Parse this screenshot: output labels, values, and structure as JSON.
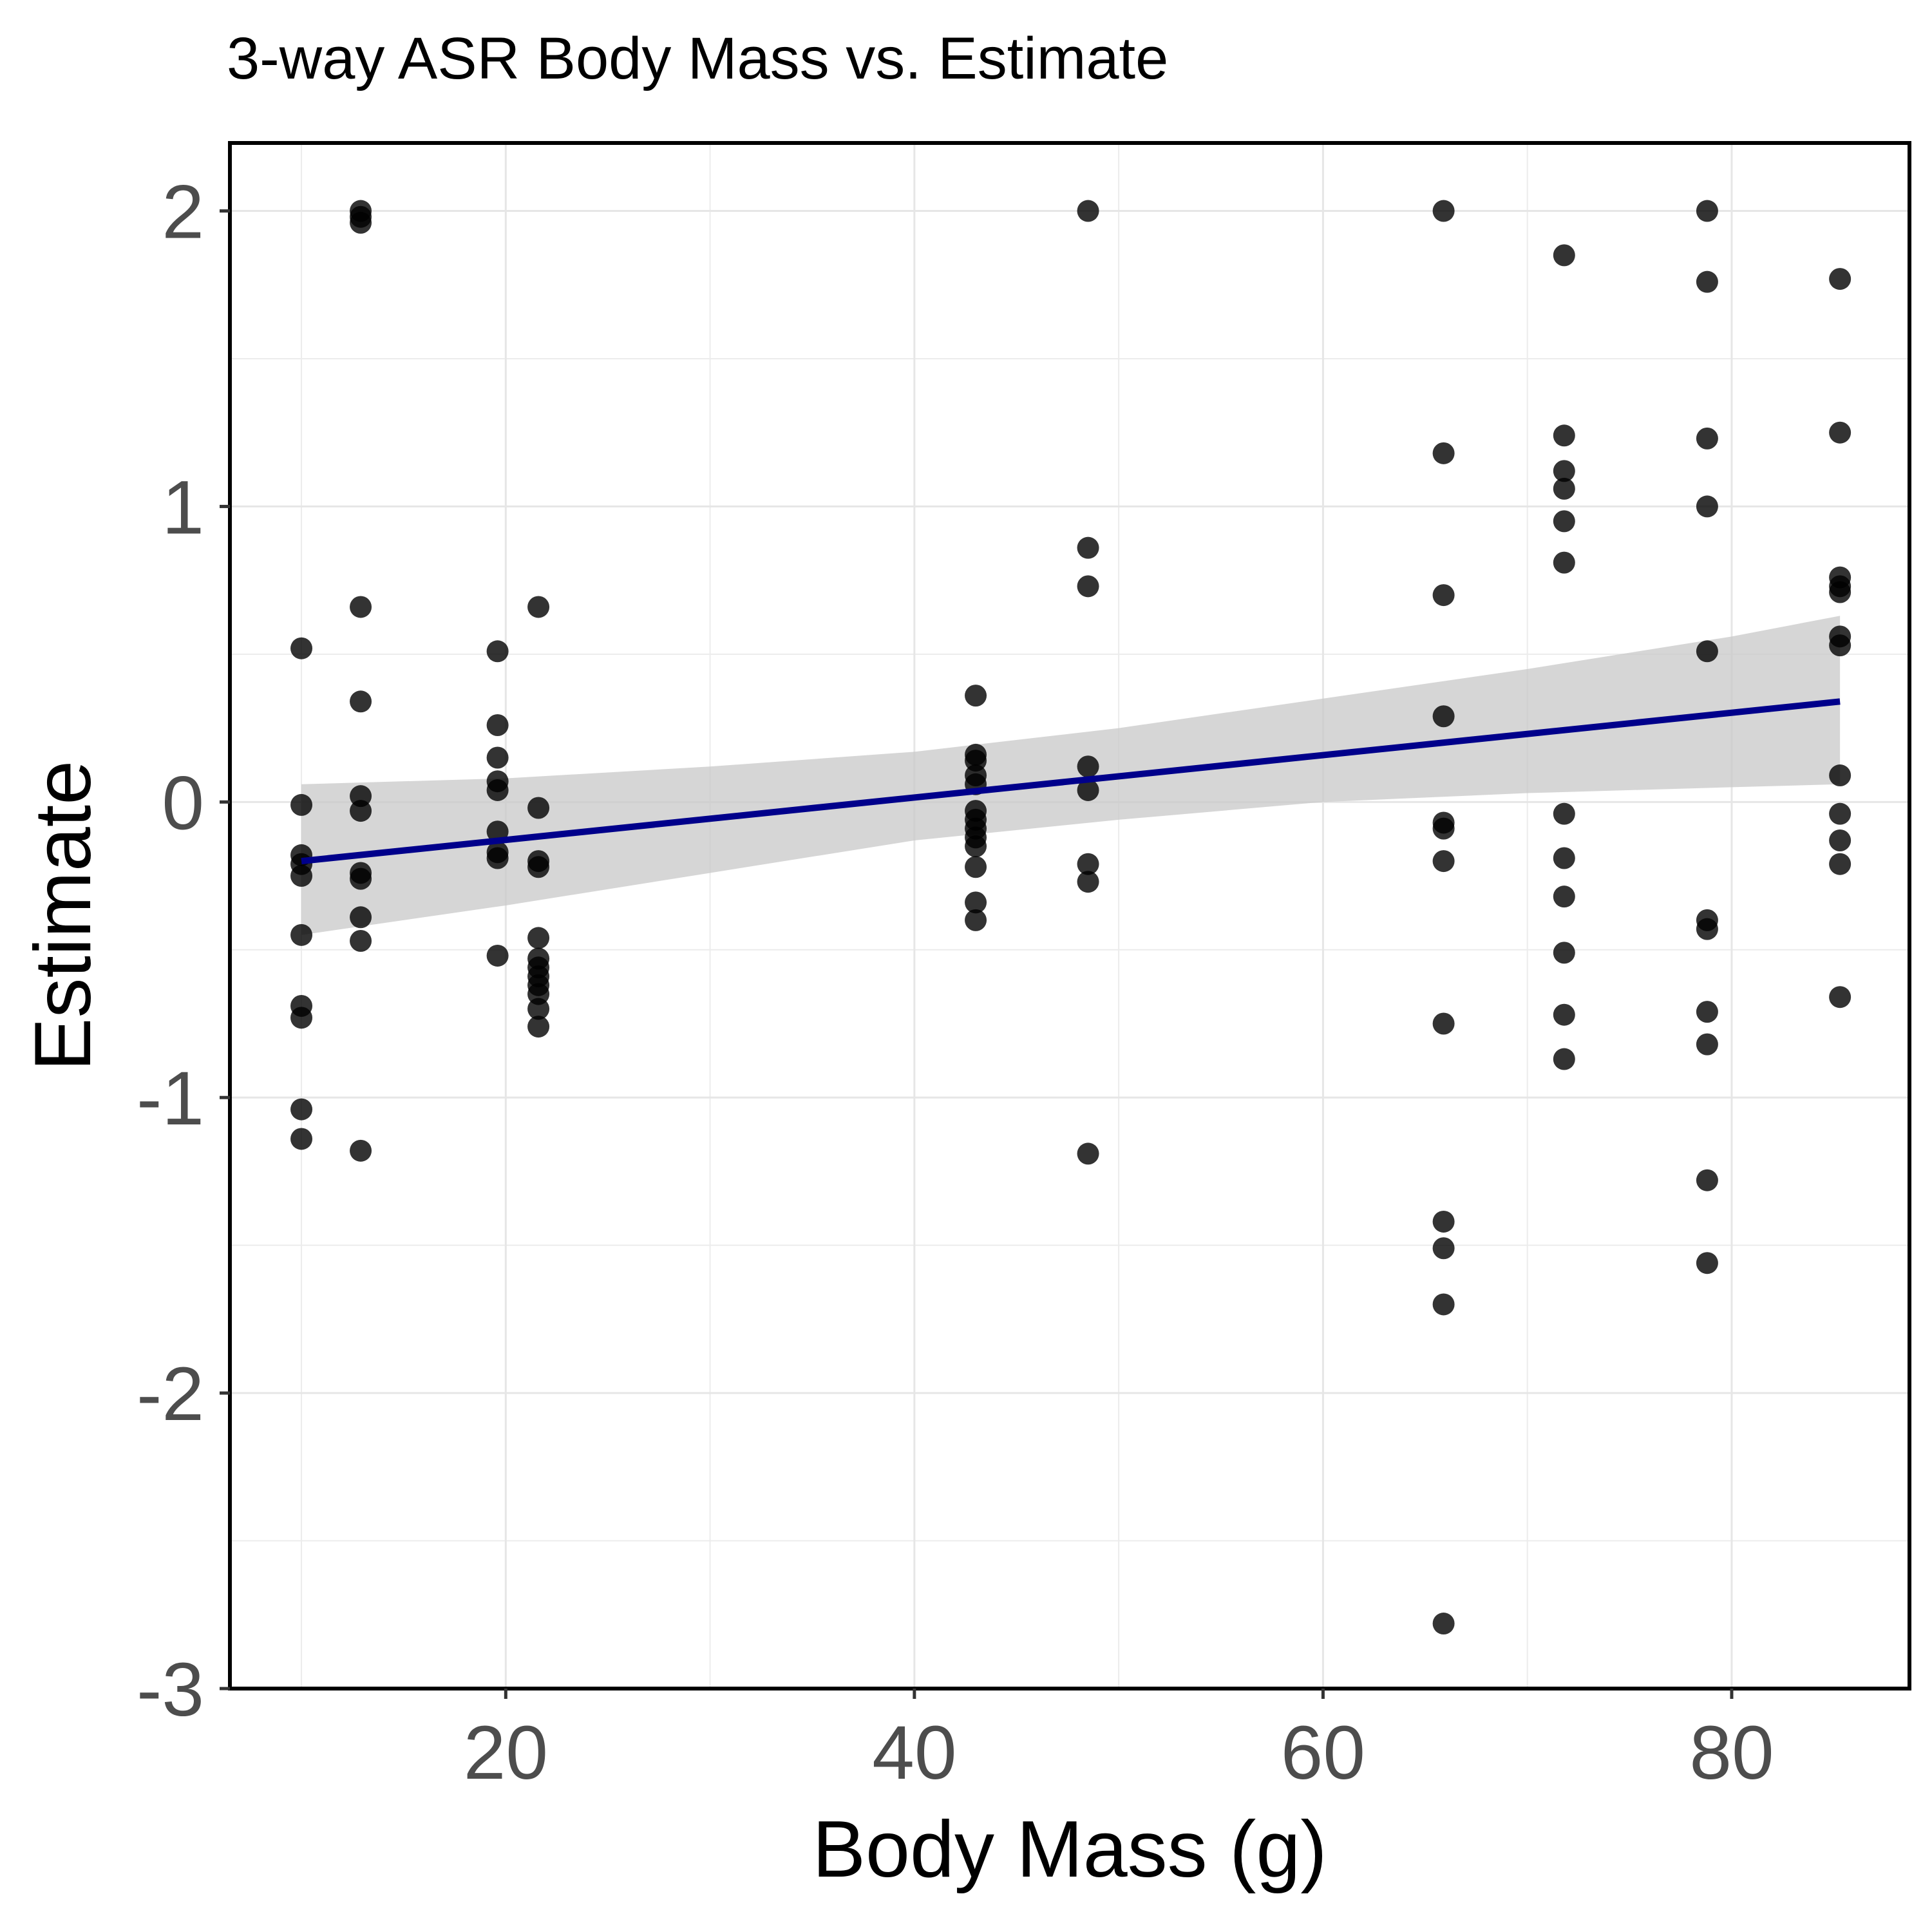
{
  "chart_data": {
    "type": "scatter",
    "title": "3-way ASR Body Mass vs. Estimate",
    "xlabel": "Body Mass (g)",
    "ylabel": "Estimate",
    "xlim": [
      6.5,
      88.7
    ],
    "ylim": [
      -3,
      2.23
    ],
    "x_ticks": [
      20,
      40,
      60,
      80
    ],
    "x_tick_labels": [
      "20",
      "40",
      "60",
      "80"
    ],
    "y_ticks": [
      -3,
      -2,
      -1,
      0,
      1,
      2
    ],
    "y_tick_labels": [
      "-3",
      "-2",
      "-1",
      "0",
      "1",
      "2"
    ],
    "grid": true,
    "legend": "none",
    "point_color": "#000000",
    "line_color": "#00008b",
    "band_color": "#c8c8c8",
    "points": [
      {
        "x": 10.0,
        "y": 0.52
      },
      {
        "x": 10.0,
        "y": -0.01
      },
      {
        "x": 10.0,
        "y": -0.18
      },
      {
        "x": 10.0,
        "y": -0.21
      },
      {
        "x": 10.0,
        "y": -0.25
      },
      {
        "x": 10.0,
        "y": -0.45
      },
      {
        "x": 10.0,
        "y": -0.69
      },
      {
        "x": 10.0,
        "y": -0.73
      },
      {
        "x": 10.0,
        "y": -1.04
      },
      {
        "x": 10.0,
        "y": -1.14
      },
      {
        "x": 12.9,
        "y": 2.0
      },
      {
        "x": 12.9,
        "y": 1.98
      },
      {
        "x": 12.9,
        "y": 1.96
      },
      {
        "x": 12.9,
        "y": 0.66
      },
      {
        "x": 12.9,
        "y": 0.34
      },
      {
        "x": 12.9,
        "y": 0.02
      },
      {
        "x": 12.9,
        "y": -0.03
      },
      {
        "x": 12.9,
        "y": -0.24
      },
      {
        "x": 12.9,
        "y": -0.26
      },
      {
        "x": 12.9,
        "y": -0.39
      },
      {
        "x": 12.9,
        "y": -0.47
      },
      {
        "x": 12.9,
        "y": -1.18
      },
      {
        "x": 19.6,
        "y": 0.51
      },
      {
        "x": 19.6,
        "y": 0.26
      },
      {
        "x": 19.6,
        "y": 0.15
      },
      {
        "x": 19.6,
        "y": 0.07
      },
      {
        "x": 19.6,
        "y": 0.04
      },
      {
        "x": 19.6,
        "y": -0.1
      },
      {
        "x": 19.6,
        "y": -0.17
      },
      {
        "x": 19.6,
        "y": -0.19
      },
      {
        "x": 19.6,
        "y": -0.52
      },
      {
        "x": 21.6,
        "y": 0.66
      },
      {
        "x": 21.6,
        "y": -0.02
      },
      {
        "x": 21.6,
        "y": -0.2
      },
      {
        "x": 21.6,
        "y": -0.22
      },
      {
        "x": 21.6,
        "y": -0.46
      },
      {
        "x": 21.6,
        "y": -0.53
      },
      {
        "x": 21.6,
        "y": -0.56
      },
      {
        "x": 21.6,
        "y": -0.59
      },
      {
        "x": 21.6,
        "y": -0.62
      },
      {
        "x": 21.6,
        "y": -0.65
      },
      {
        "x": 21.6,
        "y": -0.7
      },
      {
        "x": 21.6,
        "y": -0.76
      },
      {
        "x": 43.0,
        "y": 0.36
      },
      {
        "x": 43.0,
        "y": 0.16
      },
      {
        "x": 43.0,
        "y": 0.14
      },
      {
        "x": 43.0,
        "y": 0.09
      },
      {
        "x": 43.0,
        "y": 0.06
      },
      {
        "x": 43.0,
        "y": -0.03
      },
      {
        "x": 43.0,
        "y": -0.06
      },
      {
        "x": 43.0,
        "y": -0.09
      },
      {
        "x": 43.0,
        "y": -0.12
      },
      {
        "x": 43.0,
        "y": -0.15
      },
      {
        "x": 43.0,
        "y": -0.22
      },
      {
        "x": 43.0,
        "y": -0.34
      },
      {
        "x": 43.0,
        "y": -0.4
      },
      {
        "x": 48.5,
        "y": 2.0
      },
      {
        "x": 48.5,
        "y": 0.86
      },
      {
        "x": 48.5,
        "y": 0.73
      },
      {
        "x": 48.5,
        "y": 0.12
      },
      {
        "x": 48.5,
        "y": 0.04
      },
      {
        "x": 48.5,
        "y": -0.21
      },
      {
        "x": 48.5,
        "y": -0.27
      },
      {
        "x": 48.5,
        "y": -1.19
      },
      {
        "x": 65.9,
        "y": 2.0
      },
      {
        "x": 65.9,
        "y": 1.18
      },
      {
        "x": 65.9,
        "y": 0.7
      },
      {
        "x": 65.9,
        "y": 0.29
      },
      {
        "x": 65.9,
        "y": -0.07
      },
      {
        "x": 65.9,
        "y": -0.09
      },
      {
        "x": 65.9,
        "y": -0.2
      },
      {
        "x": 65.9,
        "y": -0.75
      },
      {
        "x": 65.9,
        "y": -1.42
      },
      {
        "x": 65.9,
        "y": -1.51
      },
      {
        "x": 65.9,
        "y": -1.7
      },
      {
        "x": 65.9,
        "y": -2.78
      },
      {
        "x": 71.8,
        "y": 1.85
      },
      {
        "x": 71.8,
        "y": 1.24
      },
      {
        "x": 71.8,
        "y": 1.12
      },
      {
        "x": 71.8,
        "y": 1.06
      },
      {
        "x": 71.8,
        "y": 0.95
      },
      {
        "x": 71.8,
        "y": 0.81
      },
      {
        "x": 71.8,
        "y": -0.04
      },
      {
        "x": 71.8,
        "y": -0.19
      },
      {
        "x": 71.8,
        "y": -0.32
      },
      {
        "x": 71.8,
        "y": -0.51
      },
      {
        "x": 71.8,
        "y": -0.72
      },
      {
        "x": 71.8,
        "y": -0.87
      },
      {
        "x": 78.8,
        "y": 2.0
      },
      {
        "x": 78.8,
        "y": 1.76
      },
      {
        "x": 78.8,
        "y": 1.23
      },
      {
        "x": 78.8,
        "y": 1.0
      },
      {
        "x": 78.8,
        "y": 0.51
      },
      {
        "x": 78.8,
        "y": -0.4
      },
      {
        "x": 78.8,
        "y": -0.43
      },
      {
        "x": 78.8,
        "y": -0.71
      },
      {
        "x": 78.8,
        "y": -0.82
      },
      {
        "x": 78.8,
        "y": -1.28
      },
      {
        "x": 78.8,
        "y": -1.56
      },
      {
        "x": 85.3,
        "y": 1.77
      },
      {
        "x": 85.3,
        "y": 1.25
      },
      {
        "x": 85.3,
        "y": 0.76
      },
      {
        "x": 85.3,
        "y": 0.73
      },
      {
        "x": 85.3,
        "y": 0.71
      },
      {
        "x": 85.3,
        "y": 0.56
      },
      {
        "x": 85.3,
        "y": 0.53
      },
      {
        "x": 85.3,
        "y": 0.09
      },
      {
        "x": 85.3,
        "y": -0.04
      },
      {
        "x": 85.3,
        "y": -0.13
      },
      {
        "x": 85.3,
        "y": -0.21
      },
      {
        "x": 85.3,
        "y": -0.66
      }
    ],
    "fit_line": {
      "x": [
        10.0,
        85.3
      ],
      "y": [
        -0.2,
        0.34
      ]
    },
    "confidence_band": {
      "x": [
        10.0,
        20.0,
        30.0,
        40.0,
        50.0,
        60.0,
        70.0,
        80.0,
        85.3
      ],
      "upper": [
        0.06,
        0.08,
        0.12,
        0.17,
        0.25,
        0.35,
        0.45,
        0.56,
        0.63
      ],
      "lower": [
        -0.45,
        -0.35,
        -0.24,
        -0.13,
        -0.06,
        0.0,
        0.03,
        0.05,
        0.06
      ]
    }
  }
}
